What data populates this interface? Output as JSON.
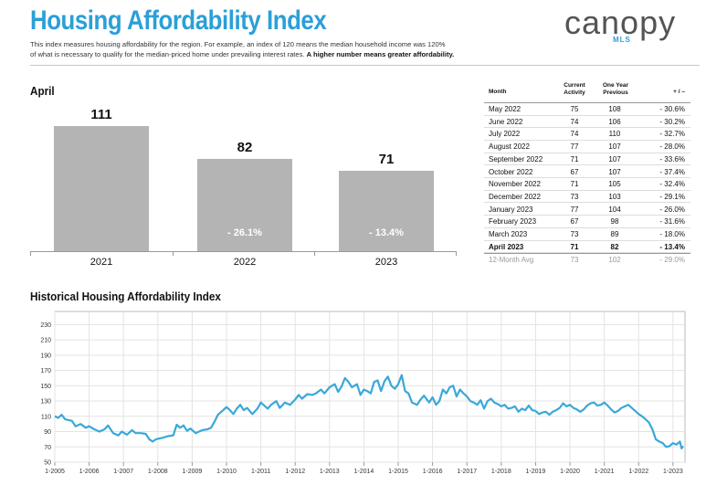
{
  "header": {
    "title": "Housing Affordability Index",
    "logo_word": "canopy",
    "logo_sub": "MLS",
    "desc_line1": "This index measures housing affordability for the region. For example, an index of 120 means the median household income was 120%",
    "desc_line2": "of what is necessary to qualify for the median-priced home under prevailing interest rates.",
    "desc_bold": "A higher number means greater affordability."
  },
  "bars_section": {
    "title": "April"
  },
  "table": {
    "headers": {
      "month": "Month",
      "current": "Current Activity",
      "previous": "One Year Previous",
      "change": "+ / –"
    },
    "rows": [
      {
        "month": "May 2022",
        "current": "75",
        "previous": "108",
        "change": "- 30.6%"
      },
      {
        "month": "June 2022",
        "current": "74",
        "previous": "106",
        "change": "- 30.2%"
      },
      {
        "month": "July 2022",
        "current": "74",
        "previous": "110",
        "change": "- 32.7%"
      },
      {
        "month": "August 2022",
        "current": "77",
        "previous": "107",
        "change": "- 28.0%"
      },
      {
        "month": "September 2022",
        "current": "71",
        "previous": "107",
        "change": "- 33.6%"
      },
      {
        "month": "October 2022",
        "current": "67",
        "previous": "107",
        "change": "- 37.4%"
      },
      {
        "month": "November 2022",
        "current": "71",
        "previous": "105",
        "change": "- 32.4%"
      },
      {
        "month": "December 2022",
        "current": "73",
        "previous": "103",
        "change": "- 29.1%"
      },
      {
        "month": "January 2023",
        "current": "77",
        "previous": "104",
        "change": "- 26.0%"
      },
      {
        "month": "February 2023",
        "current": "67",
        "previous": "98",
        "change": "- 31.6%"
      },
      {
        "month": "March 2023",
        "current": "73",
        "previous": "89",
        "change": "- 18.0%"
      },
      {
        "month": "April 2023",
        "current": "71",
        "previous": "82",
        "change": "- 13.4%",
        "bold": true
      }
    ],
    "avg": {
      "month": "12-Month Avg",
      "current": "73",
      "previous": "102",
      "change": "- 29.0%"
    }
  },
  "history_section": {
    "title": "Historical Housing Affordability Index"
  },
  "colors": {
    "title_blue": "#2b9fd8",
    "bar_gray": "#b4b4b4",
    "line_blue": "#3aa8d8"
  },
  "chart_data": [
    {
      "type": "bar",
      "title": "April",
      "categories": [
        "2021",
        "2022",
        "2023"
      ],
      "values": [
        111,
        82,
        71
      ],
      "value_labels": [
        "111",
        "82",
        "71"
      ],
      "change_labels": [
        "",
        "- 26.1%",
        "- 13.4%"
      ],
      "ylim": [
        0,
        130
      ]
    },
    {
      "type": "line",
      "title": "Historical Housing Affordability Index",
      "x_ticks": [
        "1-2005",
        "1-2006",
        "1-2007",
        "1-2008",
        "1-2009",
        "1-2010",
        "1-2011",
        "1-2012",
        "1-2013",
        "1-2014",
        "1-2015",
        "1-2016",
        "1-2017",
        "1-2018",
        "1-2019",
        "1-2020",
        "1-2021",
        "1-2022",
        "1-2023"
      ],
      "y_ticks": [
        50,
        70,
        90,
        110,
        130,
        150,
        170,
        190,
        210,
        230
      ],
      "ylim": [
        50,
        240
      ],
      "xlim": [
        2005.0,
        2023.35
      ],
      "series": [
        {
          "name": "Housing Affordability Index",
          "points": [
            [
              2005.0,
              110
            ],
            [
              2005.1,
              108
            ],
            [
              2005.2,
              112
            ],
            [
              2005.3,
              106
            ],
            [
              2005.5,
              104
            ],
            [
              2005.6,
              97
            ],
            [
              2005.75,
              100
            ],
            [
              2005.9,
              95
            ],
            [
              2006.0,
              97
            ],
            [
              2006.15,
              93
            ],
            [
              2006.3,
              90
            ],
            [
              2006.45,
              93
            ],
            [
              2006.55,
              98
            ],
            [
              2006.7,
              88
            ],
            [
              2006.85,
              85
            ],
            [
              2006.95,
              90
            ],
            [
              2007.1,
              86
            ],
            [
              2007.25,
              92
            ],
            [
              2007.35,
              88
            ],
            [
              2007.5,
              88
            ],
            [
              2007.65,
              87
            ],
            [
              2007.75,
              80
            ],
            [
              2007.85,
              77
            ],
            [
              2007.95,
              80
            ],
            [
              2008.15,
              82
            ],
            [
              2008.3,
              84
            ],
            [
              2008.45,
              85
            ],
            [
              2008.55,
              99
            ],
            [
              2008.65,
              95
            ],
            [
              2008.75,
              98
            ],
            [
              2008.85,
              91
            ],
            [
              2008.95,
              94
            ],
            [
              2009.1,
              88
            ],
            [
              2009.2,
              90
            ],
            [
              2009.3,
              92
            ],
            [
              2009.45,
              93
            ],
            [
              2009.55,
              95
            ],
            [
              2009.65,
              103
            ],
            [
              2009.75,
              112
            ],
            [
              2009.9,
              118
            ],
            [
              2010.0,
              122
            ],
            [
              2010.1,
              118
            ],
            [
              2010.2,
              113
            ],
            [
              2010.3,
              120
            ],
            [
              2010.4,
              125
            ],
            [
              2010.5,
              118
            ],
            [
              2010.6,
              121
            ],
            [
              2010.75,
              113
            ],
            [
              2010.9,
              120
            ],
            [
              2011.0,
              128
            ],
            [
              2011.1,
              124
            ],
            [
              2011.2,
              120
            ],
            [
              2011.3,
              125
            ],
            [
              2011.45,
              130
            ],
            [
              2011.55,
              121
            ],
            [
              2011.7,
              128
            ],
            [
              2011.85,
              125
            ],
            [
              2012.0,
              132
            ],
            [
              2012.1,
              138
            ],
            [
              2012.2,
              133
            ],
            [
              2012.35,
              139
            ],
            [
              2012.5,
              138
            ],
            [
              2012.6,
              140
            ],
            [
              2012.75,
              145
            ],
            [
              2012.85,
              140
            ],
            [
              2013.0,
              148
            ],
            [
              2013.15,
              152
            ],
            [
              2013.25,
              142
            ],
            [
              2013.35,
              149
            ],
            [
              2013.45,
              160
            ],
            [
              2013.55,
              155
            ],
            [
              2013.65,
              148
            ],
            [
              2013.8,
              152
            ],
            [
              2013.9,
              138
            ],
            [
              2014.0,
              145
            ],
            [
              2014.1,
              143
            ],
            [
              2014.2,
              140
            ],
            [
              2014.3,
              155
            ],
            [
              2014.4,
              157
            ],
            [
              2014.5,
              143
            ],
            [
              2014.6,
              156
            ],
            [
              2014.7,
              162
            ],
            [
              2014.8,
              150
            ],
            [
              2014.9,
              146
            ],
            [
              2015.0,
              152
            ],
            [
              2015.1,
              164
            ],
            [
              2015.2,
              143
            ],
            [
              2015.3,
              140
            ],
            [
              2015.4,
              128
            ],
            [
              2015.55,
              125
            ],
            [
              2015.65,
              132
            ],
            [
              2015.75,
              137
            ],
            [
              2015.9,
              128
            ],
            [
              2016.0,
              135
            ],
            [
              2016.1,
              125
            ],
            [
              2016.2,
              130
            ],
            [
              2016.3,
              145
            ],
            [
              2016.4,
              140
            ],
            [
              2016.5,
              148
            ],
            [
              2016.6,
              150
            ],
            [
              2016.7,
              136
            ],
            [
              2016.8,
              145
            ],
            [
              2016.9,
              140
            ],
            [
              2017.0,
              136
            ],
            [
              2017.1,
              130
            ],
            [
              2017.2,
              128
            ],
            [
              2017.3,
              125
            ],
            [
              2017.4,
              131
            ],
            [
              2017.5,
              120
            ],
            [
              2017.6,
              130
            ],
            [
              2017.7,
              133
            ],
            [
              2017.8,
              128
            ],
            [
              2017.9,
              126
            ],
            [
              2018.0,
              123
            ],
            [
              2018.1,
              125
            ],
            [
              2018.2,
              120
            ],
            [
              2018.3,
              121
            ],
            [
              2018.4,
              123
            ],
            [
              2018.5,
              116
            ],
            [
              2018.6,
              120
            ],
            [
              2018.7,
              118
            ],
            [
              2018.8,
              124
            ],
            [
              2018.9,
              118
            ],
            [
              2019.0,
              117
            ],
            [
              2019.1,
              113
            ],
            [
              2019.2,
              115
            ],
            [
              2019.3,
              116
            ],
            [
              2019.4,
              112
            ],
            [
              2019.5,
              116
            ],
            [
              2019.6,
              118
            ],
            [
              2019.7,
              121
            ],
            [
              2019.8,
              127
            ],
            [
              2019.9,
              123
            ],
            [
              2020.0,
              125
            ],
            [
              2020.1,
              121
            ],
            [
              2020.2,
              119
            ],
            [
              2020.3,
              116
            ],
            [
              2020.4,
              119
            ],
            [
              2020.5,
              124
            ],
            [
              2020.6,
              127
            ],
            [
              2020.7,
              128
            ],
            [
              2020.8,
              124
            ],
            [
              2020.9,
              125
            ],
            [
              2021.0,
              128
            ],
            [
              2021.1,
              124
            ],
            [
              2021.2,
              119
            ],
            [
              2021.3,
              115
            ],
            [
              2021.4,
              117
            ],
            [
              2021.5,
              121
            ],
            [
              2021.6,
              123
            ],
            [
              2021.7,
              125
            ],
            [
              2021.8,
              121
            ],
            [
              2021.9,
              117
            ],
            [
              2022.0,
              113
            ],
            [
              2022.1,
              110
            ],
            [
              2022.2,
              106
            ],
            [
              2022.3,
              102
            ],
            [
              2022.4,
              93
            ],
            [
              2022.5,
              80
            ],
            [
              2022.6,
              77
            ],
            [
              2022.7,
              75
            ],
            [
              2022.8,
              70
            ],
            [
              2022.9,
              71
            ],
            [
              2023.0,
              75
            ],
            [
              2023.1,
              73
            ],
            [
              2023.2,
              77
            ],
            [
              2023.25,
              68
            ],
            [
              2023.3,
              71
            ]
          ]
        }
      ]
    }
  ]
}
